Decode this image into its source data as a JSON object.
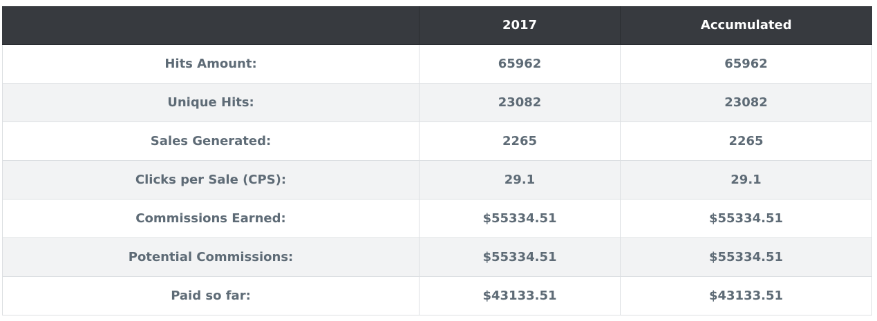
{
  "stats_table": {
    "headers": [
      "",
      "2017",
      "Accumulated"
    ],
    "rows": [
      {
        "label": "Hits Amount:",
        "year": "65962",
        "accumulated": "65962"
      },
      {
        "label": "Unique Hits:",
        "year": "23082",
        "accumulated": "23082"
      },
      {
        "label": "Sales Generated:",
        "year": "2265",
        "accumulated": "2265"
      },
      {
        "label": "Clicks per Sale (CPS):",
        "year": "29.1",
        "accumulated": "29.1"
      },
      {
        "label": "Commissions Earned:",
        "year": "$55334.51",
        "accumulated": "$55334.51"
      },
      {
        "label": "Potential Commissions:",
        "year": "$55334.51",
        "accumulated": "$55334.51"
      },
      {
        "label": "Paid so far:",
        "year": "$43133.51",
        "accumulated": "$43133.51"
      }
    ]
  }
}
